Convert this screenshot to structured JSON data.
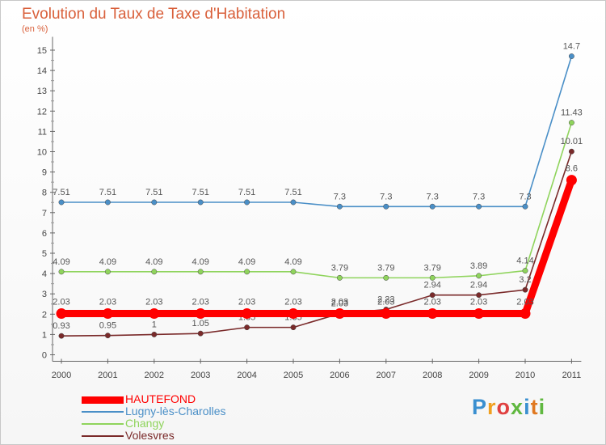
{
  "chart_data": {
    "type": "line",
    "title": "Evolution du Taux de Taxe d'Habitation",
    "unit_label": "(en %)",
    "x": [
      "2000",
      "2001",
      "2002",
      "2003",
      "2004",
      "2005",
      "2006",
      "2007",
      "2008",
      "2009",
      "2010",
      "2011"
    ],
    "yticks": [
      "0",
      "1",
      "2",
      "3",
      "4",
      "5",
      "6",
      "7",
      "8",
      "9",
      "10",
      "11",
      "12",
      "13",
      "14",
      "15"
    ],
    "ylim": [
      0,
      15.5
    ],
    "grid": false,
    "legend_position": "bottom-left",
    "series": [
      {
        "name": "Lugny-lès-Charolles",
        "color": "#4a8fc7",
        "values": [
          7.51,
          7.51,
          7.51,
          7.51,
          7.51,
          7.51,
          7.3,
          7.3,
          7.3,
          7.3,
          7.3,
          14.7
        ],
        "labels": [
          "7.51",
          "7.51",
          "7.51",
          "7.51",
          "7.51",
          "7.51",
          "7.3",
          "7.3",
          "7.3",
          "7.3",
          "7.3",
          "14.7"
        ]
      },
      {
        "name": "Changy",
        "color": "#8fd45c",
        "values": [
          4.09,
          4.09,
          4.09,
          4.09,
          4.09,
          4.09,
          3.79,
          3.79,
          3.79,
          3.89,
          4.14,
          11.43
        ],
        "labels": [
          "4.09",
          "4.09",
          "4.09",
          "4.09",
          "4.09",
          "4.09",
          "3.79",
          "3.79",
          "3.79",
          "3.89",
          "4.14",
          "11.43"
        ]
      },
      {
        "name": "Volesvres",
        "color": "#7a2a2a",
        "values": [
          0.93,
          0.95,
          1,
          1.05,
          1.35,
          1.35,
          2.03,
          2.23,
          2.94,
          2.94,
          3.2,
          10.01
        ],
        "labels": [
          "0.93",
          "0.95",
          "1",
          "1.05",
          "1.35",
          "1.35",
          "2.03",
          "2.23",
          "2.94",
          "2.94",
          "3.2",
          "10.01"
        ]
      },
      {
        "name": "HAUTEFOND",
        "color": "#ff0000",
        "values": [
          2.03,
          2.03,
          2.03,
          2.03,
          2.03,
          2.03,
          2.03,
          2.03,
          2.03,
          2.03,
          2.03,
          8.6
        ],
        "labels": [
          "2.03",
          "2.03",
          "2.03",
          "2.03",
          "2.03",
          "2.03",
          "2.03",
          "2.03",
          "2.03",
          "2.03",
          "2.03",
          "8.6"
        ]
      }
    ]
  },
  "legend": [
    {
      "label": "HAUTEFOND",
      "color": "#ff0000"
    },
    {
      "label": "Lugny-lès-Charolles",
      "color": "#4a8fc7"
    },
    {
      "label": "Changy",
      "color": "#8fd45c"
    },
    {
      "label": "Volesvres",
      "color": "#7a2a2a"
    }
  ],
  "logo": {
    "text": "Proxiti"
  }
}
